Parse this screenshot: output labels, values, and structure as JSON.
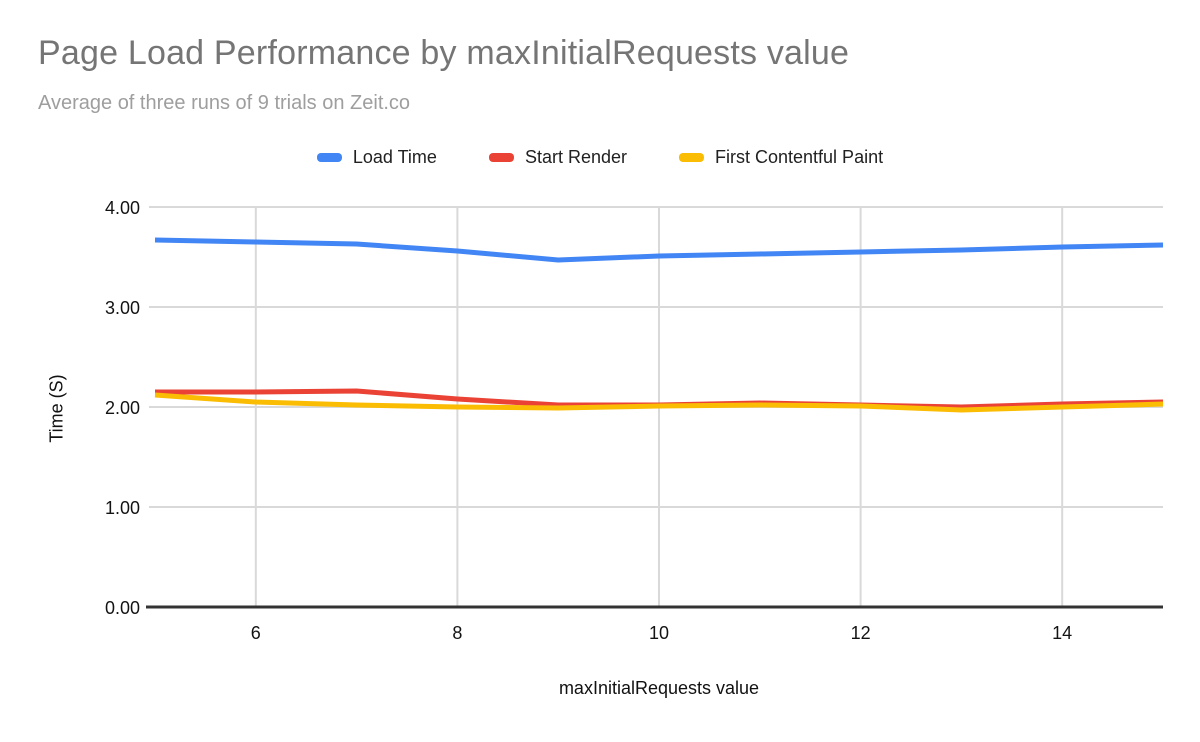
{
  "chart_data": {
    "type": "line",
    "title": "Page Load Performance by maxInitialRequests value",
    "subtitle": "Average of three runs of 9 trials on Zeit.co",
    "xlabel": "maxInitialRequests value",
    "ylabel": "Time (S)",
    "x": [
      5,
      6,
      7,
      8,
      9,
      10,
      11,
      12,
      13,
      14,
      15
    ],
    "series": [
      {
        "name": "Load Time",
        "color": "#4285F4",
        "values": [
          3.67,
          3.65,
          3.63,
          3.56,
          3.47,
          3.51,
          3.53,
          3.55,
          3.57,
          3.6,
          3.62
        ]
      },
      {
        "name": "Start Render",
        "color": "#EA4335",
        "values": [
          2.15,
          2.15,
          2.16,
          2.08,
          2.02,
          2.02,
          2.04,
          2.02,
          2.0,
          2.03,
          2.05
        ]
      },
      {
        "name": "First Contentful Paint",
        "color": "#FBBC04",
        "values": [
          2.12,
          2.05,
          2.02,
          2.0,
          1.99,
          2.01,
          2.02,
          2.01,
          1.97,
          2.0,
          2.03
        ]
      }
    ],
    "xlim": [
      5,
      15
    ],
    "ylim": [
      0,
      4
    ],
    "xticks": [
      6,
      8,
      10,
      12,
      14
    ],
    "xtick_labels": [
      "6",
      "8",
      "10",
      "12",
      "14"
    ],
    "yticks": [
      0,
      1,
      2,
      3,
      4
    ],
    "ytick_labels": [
      "0.00",
      "1.00",
      "2.00",
      "3.00",
      "4.00"
    ],
    "grid": true,
    "legend_position": "top",
    "colors": {
      "background": "#FFFFFF",
      "title": "#757575",
      "subtitle": "#9E9E9E",
      "gridline": "#D9D9D9",
      "axis_line": "#333333",
      "tick_label": "#131313"
    }
  }
}
